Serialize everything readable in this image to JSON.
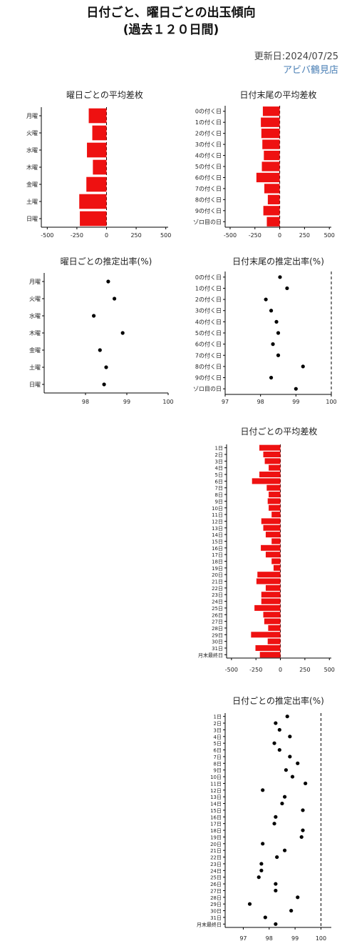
{
  "page": {
    "title_line1": "日付ごと、曜日ごとの出玉傾向",
    "title_line2": "(過去１２０日間)",
    "updated": "更新日:2024/07/25",
    "store": "アビバ鶴見店"
  },
  "colors": {
    "bar": "#ee1111",
    "point": "#000000",
    "axis": "#000000"
  },
  "chart_data": [
    {
      "id": "weekday-diff",
      "type": "bar",
      "orientation": "horizontal",
      "title": "曜日ごとの平均差枚",
      "categories": [
        "月曜",
        "火曜",
        "水曜",
        "木曜",
        "金曜",
        "土曜",
        "日曜"
      ],
      "values": [
        -150,
        -120,
        -165,
        -115,
        -170,
        -230,
        -225
      ],
      "xlim": [
        -550,
        520
      ],
      "xticks": [
        -500,
        -250,
        0,
        250,
        500
      ],
      "zero_line": "dashed"
    },
    {
      "id": "digit-diff",
      "type": "bar",
      "orientation": "horizontal",
      "title": "日付末尾の平均差枚",
      "categories": [
        "0の付く日",
        "1の付く日",
        "2の付く日",
        "3の付く日",
        "4の付く日",
        "5の付く日",
        "6の付く日",
        "7の付く日",
        "8の付く日",
        "9の付く日",
        "ゾロ目の日"
      ],
      "values": [
        -170,
        -190,
        -185,
        -175,
        -160,
        -180,
        -235,
        -155,
        -120,
        -165,
        -130
      ],
      "xlim": [
        -550,
        520
      ],
      "xticks": [
        -500,
        -250,
        0,
        250,
        500
      ],
      "zero_line": "dashed"
    },
    {
      "id": "weekday-rate",
      "type": "scatter",
      "title": "曜日ごとの推定出率(%)",
      "categories": [
        "月曜",
        "火曜",
        "水曜",
        "木曜",
        "金曜",
        "土曜",
        "日曜"
      ],
      "values": [
        98.55,
        98.7,
        98.2,
        98.9,
        98.35,
        98.5,
        98.45
      ],
      "xlim": [
        97,
        100
      ],
      "xticks": [
        98,
        99,
        100
      ],
      "reference_line": null
    },
    {
      "id": "digit-rate",
      "type": "scatter",
      "title": "日付末尾の推定出率(%)",
      "categories": [
        "0の付く日",
        "1の付く日",
        "2の付く日",
        "3の付く日",
        "4の付く日",
        "5の付く日",
        "6の付く日",
        "7の付く日",
        "8の付く日",
        "9の付く日",
        "ゾロ目の日"
      ],
      "values": [
        98.55,
        98.75,
        98.15,
        98.3,
        98.45,
        98.5,
        98.35,
        98.5,
        99.2,
        98.3,
        99.0
      ],
      "xlim": [
        97,
        100
      ],
      "xticks": [
        97,
        98,
        99,
        100
      ],
      "reference_line": 100
    },
    {
      "id": "date-diff",
      "type": "bar",
      "orientation": "horizontal",
      "title": "日付ごとの平均差枚",
      "categories": [
        "1日",
        "2日",
        "3日",
        "4日",
        "5日",
        "6日",
        "7日",
        "8日",
        "9日",
        "10日",
        "11日",
        "12日",
        "13日",
        "14日",
        "15日",
        "16日",
        "17日",
        "18日",
        "19日",
        "20日",
        "21日",
        "22日",
        "23日",
        "24日",
        "25日",
        "26日",
        "27日",
        "28日",
        "29日",
        "30日",
        "31日",
        "月末最終日"
      ],
      "values": [
        -215,
        -175,
        -160,
        -120,
        -215,
        -290,
        -140,
        -120,
        -130,
        -120,
        -90,
        -195,
        -175,
        -150,
        -90,
        -200,
        -150,
        -90,
        -70,
        -235,
        -245,
        -150,
        -195,
        -195,
        -265,
        -175,
        -165,
        -125,
        -300,
        -130,
        -255,
        -210
      ],
      "xlim": [
        -550,
        520
      ],
      "xticks": [
        -500,
        -250,
        0,
        250,
        500
      ],
      "zero_line": "dashed"
    },
    {
      "id": "date-rate",
      "type": "scatter",
      "title": "日付ごとの推定出率(%)",
      "categories": [
        "1日",
        "2日",
        "3日",
        "4日",
        "5日",
        "6日",
        "7日",
        "8日",
        "9日",
        "10日",
        "11日",
        "12日",
        "13日",
        "14日",
        "15日",
        "16日",
        "17日",
        "18日",
        "19日",
        "20日",
        "21日",
        "22日",
        "23日",
        "24日",
        "25日",
        "26日",
        "27日",
        "28日",
        "29日",
        "30日",
        "31日",
        "月末最終日"
      ],
      "values": [
        98.7,
        98.25,
        98.4,
        98.8,
        98.2,
        98.4,
        98.8,
        99.1,
        98.65,
        98.9,
        99.4,
        97.75,
        98.6,
        98.5,
        99.3,
        98.25,
        98.2,
        99.3,
        99.25,
        97.75,
        98.6,
        98.3,
        97.7,
        97.7,
        97.6,
        98.25,
        98.25,
        99.1,
        97.25,
        98.85,
        97.85,
        98.25
      ],
      "xlim": [
        96.3,
        100.4
      ],
      "xticks": [
        97,
        98,
        99,
        100
      ],
      "reference_line": 100
    }
  ]
}
